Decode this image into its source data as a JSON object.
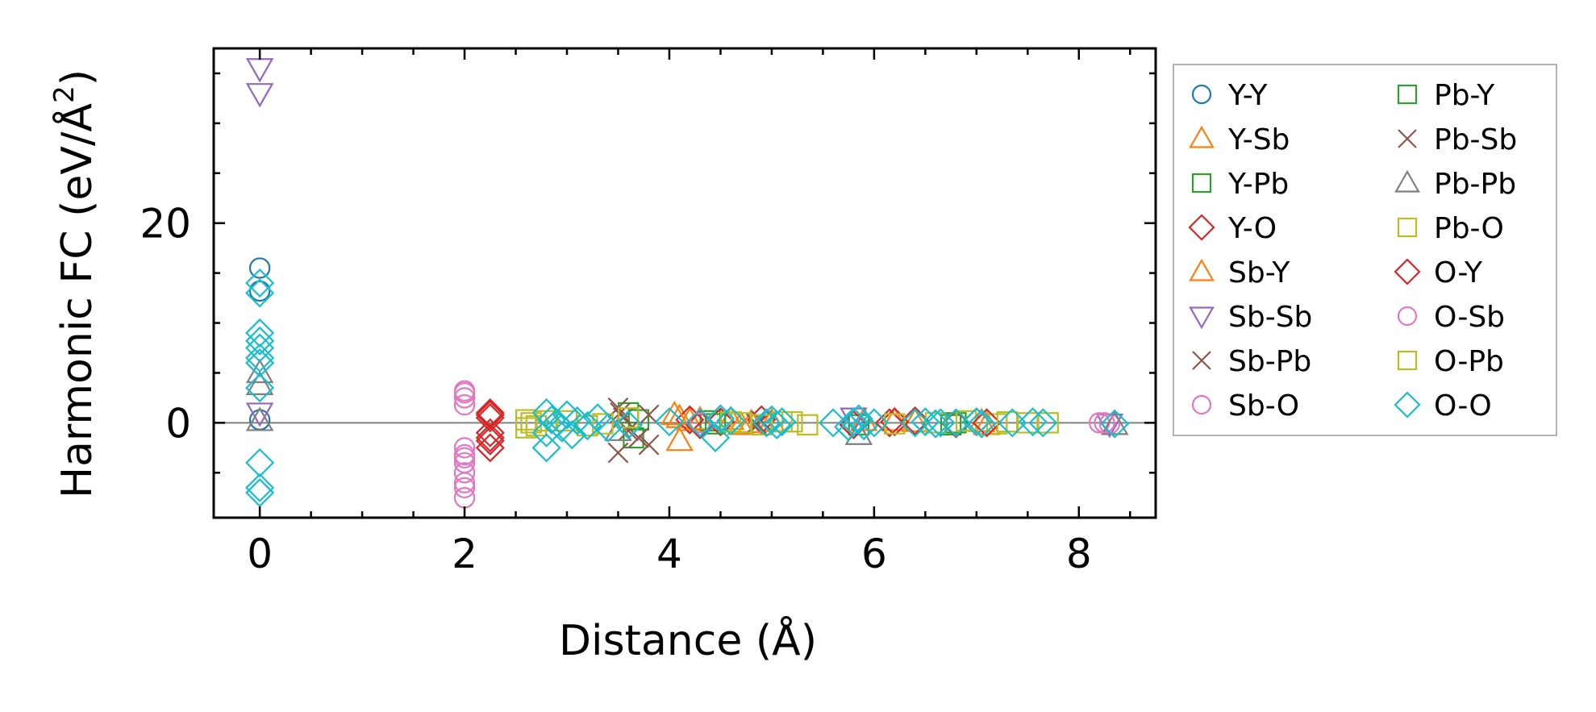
{
  "chart_data": {
    "type": "scatter",
    "xlabel": "Distance (Å)",
    "ylabel_main": "Harmonic FC (eV/Å",
    "ylabel_sup": "2",
    "ylabel_close": ")",
    "xlim": [
      -0.45,
      8.75
    ],
    "ylim": [
      -9.5,
      37.5
    ],
    "x_ticks": [
      0,
      2,
      4,
      6,
      8
    ],
    "x_tick_labels": [
      "0",
      "2",
      "4",
      "6",
      "8"
    ],
    "x_minor_step": 0.5,
    "y_ticks": [
      0,
      20
    ],
    "y_tick_labels": [
      "0",
      "20"
    ],
    "y_minor_step": 5,
    "zero_line": true,
    "legend_position": "outside right",
    "legend_columns": 2,
    "series": [
      {
        "name": "Y-Y",
        "color": "#1f77b4",
        "marker": "circle",
        "points": [
          [
            0,
            15.5
          ],
          [
            0,
            13.2
          ],
          [
            0,
            0.3
          ]
        ]
      },
      {
        "name": "Y-Sb",
        "color": "#ff7f0e",
        "marker": "triangle-up",
        "points": [
          [
            4.1,
            0.5
          ],
          [
            4.1,
            -1.8
          ],
          [
            4.2,
            0.2
          ],
          [
            4.6,
            0.3
          ],
          [
            4.7,
            -0.2
          ],
          [
            5.0,
            0.1
          ],
          [
            6.2,
            0.2
          ],
          [
            6.4,
            0.1
          ],
          [
            7.1,
            -0.2
          ]
        ]
      },
      {
        "name": "Y-Pb",
        "color": "#2ca02c",
        "marker": "square",
        "points": [
          [
            3.6,
            1.0
          ],
          [
            3.65,
            -1.5
          ],
          [
            3.7,
            0.3
          ],
          [
            4.4,
            0.2
          ],
          [
            5.85,
            -0.2
          ],
          [
            6.75,
            -0.2
          ]
        ]
      },
      {
        "name": "Y-O",
        "color": "#d62728",
        "marker": "diamond",
        "points": [
          [
            2.25,
            1.0
          ],
          [
            2.25,
            0.5
          ],
          [
            2.25,
            -1.0
          ],
          [
            2.25,
            -1.8
          ],
          [
            2.25,
            -2.5
          ],
          [
            4.2,
            0.3
          ],
          [
            4.5,
            0.1
          ],
          [
            4.9,
            0.3
          ],
          [
            5.8,
            -0.2
          ],
          [
            6.2,
            0.1
          ],
          [
            6.4,
            0.2
          ],
          [
            6.8,
            -0.1
          ],
          [
            7.0,
            0.1
          ]
        ]
      },
      {
        "name": "Sb-Y",
        "color": "#ff7f0e",
        "marker": "triangle-up",
        "points": [
          [
            4.05,
            0.8
          ],
          [
            4.3,
            0.3
          ],
          [
            4.8,
            0.0
          ],
          [
            5.9,
            0.2
          ],
          [
            7.05,
            0.1
          ]
        ]
      },
      {
        "name": "Sb-Sb",
        "color": "#9467bd",
        "marker": "triangle-down",
        "points": [
          [
            0,
            35.5
          ],
          [
            0,
            33.0
          ],
          [
            0,
            1.0
          ],
          [
            5.8,
            0.5
          ],
          [
            8.3,
            -0.1
          ]
        ]
      },
      {
        "name": "Sb-Pb",
        "color": "#8c564b",
        "marker": "x",
        "points": [
          [
            3.5,
            1.5
          ],
          [
            3.5,
            -3.0
          ],
          [
            3.55,
            0.5
          ],
          [
            3.6,
            -0.8
          ],
          [
            3.8,
            -2.2
          ],
          [
            3.8,
            0.8
          ],
          [
            4.9,
            0.2
          ]
        ]
      },
      {
        "name": "Sb-O",
        "color": "#e377c2",
        "marker": "circle",
        "points": [
          [
            2.0,
            3.2
          ],
          [
            2.0,
            2.5
          ],
          [
            2.0,
            1.8
          ],
          [
            2.0,
            -2.5
          ],
          [
            2.0,
            -3.2
          ],
          [
            2.0,
            -4.0
          ],
          [
            2.0,
            -5.0
          ],
          [
            2.0,
            -6.0
          ],
          [
            2.0,
            -7.5
          ],
          [
            8.2,
            0.0
          ],
          [
            8.3,
            -0.1
          ]
        ]
      },
      {
        "name": "Pb-Y",
        "color": "#2ca02c",
        "marker": "square",
        "points": [
          [
            3.6,
            0.5
          ],
          [
            4.45,
            -0.1
          ],
          [
            6.8,
            0.0
          ]
        ]
      },
      {
        "name": "Pb-Sb",
        "color": "#8c564b",
        "marker": "x",
        "points": [
          [
            3.52,
            1.0
          ],
          [
            3.7,
            -1.5
          ],
          [
            4.85,
            -0.1
          ]
        ]
      },
      {
        "name": "Pb-Pb",
        "color": "#7f7f7f",
        "marker": "triangle-up",
        "points": [
          [
            0,
            5.0
          ],
          [
            0,
            3.8
          ],
          [
            0,
            0.2
          ],
          [
            3.5,
            -0.8
          ],
          [
            5.85,
            -1.2
          ],
          [
            8.35,
            -0.2
          ]
        ]
      },
      {
        "name": "Pb-O",
        "color": "#bcbd22",
        "marker": "square",
        "points": [
          [
            2.6,
            0.3
          ],
          [
            2.6,
            -0.5
          ],
          [
            2.7,
            -0.3
          ],
          [
            2.8,
            0.2
          ],
          [
            3.2,
            -0.3
          ],
          [
            3.6,
            0.5
          ],
          [
            4.6,
            0.1
          ],
          [
            4.9,
            -0.2
          ],
          [
            5.2,
            0.1
          ],
          [
            5.35,
            -0.2
          ],
          [
            6.9,
            0.2
          ],
          [
            7.2,
            -0.1
          ],
          [
            7.5,
            0.0
          ]
        ]
      },
      {
        "name": "O-Y",
        "color": "#d62728",
        "marker": "diamond",
        "points": [
          [
            2.25,
            0.8
          ],
          [
            2.25,
            -1.5
          ],
          [
            4.3,
            -0.2
          ],
          [
            6.15,
            0.0
          ],
          [
            7.1,
            0.0
          ]
        ]
      },
      {
        "name": "O-Sb",
        "color": "#e377c2",
        "marker": "circle",
        "points": [
          [
            2.0,
            3.0
          ],
          [
            2.0,
            -3.5
          ],
          [
            2.0,
            -6.5
          ],
          [
            4.3,
            0.0
          ],
          [
            8.25,
            0.0
          ]
        ]
      },
      {
        "name": "O-Pb",
        "color": "#bcbd22",
        "marker": "square",
        "points": [
          [
            2.65,
            0.0
          ],
          [
            3.0,
            0.2
          ],
          [
            3.35,
            -0.1
          ],
          [
            4.7,
            0.0
          ],
          [
            5.1,
            0.1
          ],
          [
            6.2,
            -0.1
          ],
          [
            6.6,
            0.0
          ],
          [
            7.3,
            0.1
          ],
          [
            7.7,
            0.0
          ]
        ]
      },
      {
        "name": "O-O",
        "color": "#17becf",
        "marker": "diamond",
        "points": [
          [
            0,
            14.0
          ],
          [
            0,
            13.0
          ],
          [
            0,
            9.0
          ],
          [
            0,
            8.2
          ],
          [
            0,
            7.5
          ],
          [
            0,
            6.5
          ],
          [
            0,
            6.0
          ],
          [
            0,
            3.5
          ],
          [
            0,
            -4.0
          ],
          [
            0,
            -6.5
          ],
          [
            0,
            -7.0
          ],
          [
            2.8,
            1.0
          ],
          [
            2.8,
            -1.0
          ],
          [
            2.8,
            -2.5
          ],
          [
            2.85,
            0.3
          ],
          [
            2.9,
            0.0
          ],
          [
            2.95,
            -0.5
          ],
          [
            3.0,
            0.8
          ],
          [
            3.05,
            -1.2
          ],
          [
            3.1,
            0.2
          ],
          [
            3.2,
            -0.3
          ],
          [
            3.3,
            0.5
          ],
          [
            3.4,
            -0.5
          ],
          [
            3.6,
            -0.2
          ],
          [
            4.0,
            0.1
          ],
          [
            4.3,
            0.0
          ],
          [
            4.45,
            -1.5
          ],
          [
            4.5,
            0.4
          ],
          [
            4.6,
            0.2
          ],
          [
            4.95,
            0.0
          ],
          [
            5.0,
            0.3
          ],
          [
            5.05,
            -0.2
          ],
          [
            5.1,
            0.1
          ],
          [
            5.6,
            0.0
          ],
          [
            5.75,
            -0.4
          ],
          [
            5.8,
            0.1
          ],
          [
            5.85,
            0.4
          ],
          [
            5.9,
            -0.3
          ],
          [
            6.0,
            0.0
          ],
          [
            6.4,
            0.0
          ],
          [
            6.5,
            0.1
          ],
          [
            6.6,
            -0.1
          ],
          [
            6.65,
            0.0
          ],
          [
            6.8,
            0.0
          ],
          [
            7.0,
            0.1
          ],
          [
            7.05,
            -0.1
          ],
          [
            7.35,
            0.0
          ],
          [
            7.55,
            0.1
          ],
          [
            7.65,
            0.0
          ],
          [
            8.35,
            -0.1
          ]
        ]
      }
    ]
  }
}
